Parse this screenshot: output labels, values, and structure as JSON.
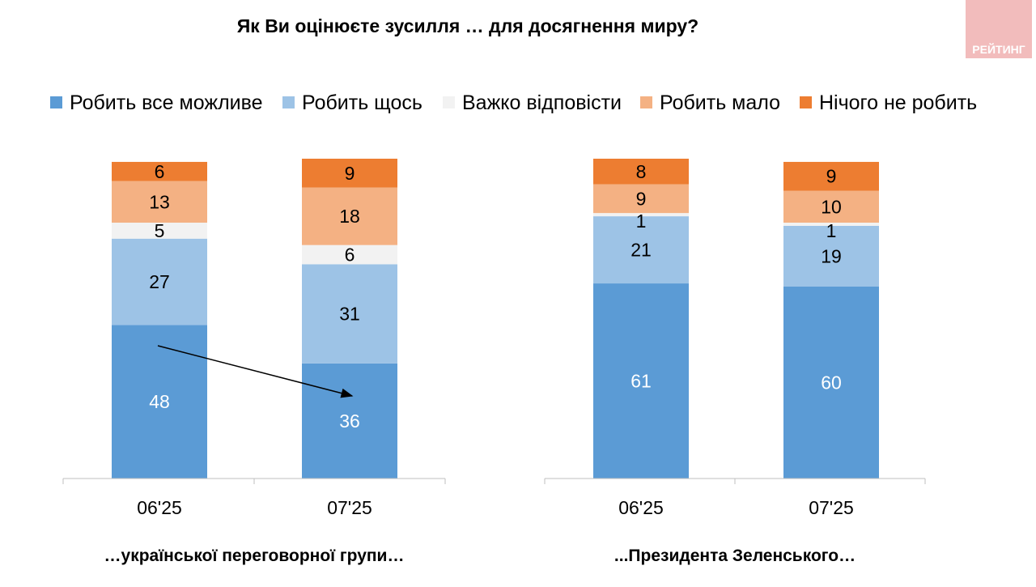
{
  "logo": {
    "text": "РЕЙТИНГ",
    "color": "#f2bcbc"
  },
  "chart_data": {
    "type": "stacked-bar",
    "title": "Як Ви оцінюєте зусилля … для досягнення миру?",
    "legend_position": "top",
    "series": [
      {
        "name": "Робить все можливе",
        "color": "#5b9bd5"
      },
      {
        "name": "Робить щось",
        "color": "#9dc3e6"
      },
      {
        "name": "Важко відповісти",
        "color": "#f2f2f2"
      },
      {
        "name": "Робить мало",
        "color": "#f4b183"
      },
      {
        "name": "Нічого не робить",
        "color": "#ed7d31"
      }
    ],
    "panels": [
      {
        "subtitle": "…української переговорної групи…",
        "categories": [
          "06'25",
          "07'25"
        ],
        "values": [
          [
            48,
            27,
            5,
            13,
            6
          ],
          [
            36,
            31,
            6,
            18,
            9
          ]
        ]
      },
      {
        "subtitle": "...Президента Зеленського…",
        "categories": [
          "06'25",
          "07'25"
        ],
        "values": [
          [
            61,
            21,
            1,
            9,
            8
          ],
          [
            60,
            19,
            1,
            10,
            9
          ]
        ]
      }
    ]
  }
}
